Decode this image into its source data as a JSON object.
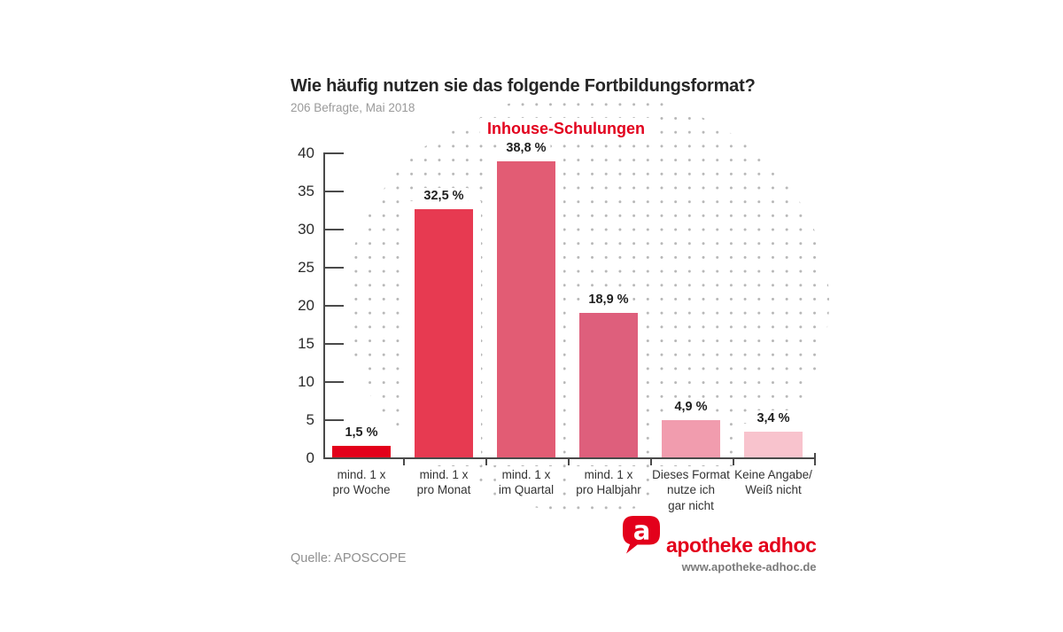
{
  "header": {
    "title": "Wie häufig nutzen sie das folgende Fortbildungsformat?",
    "subtitle": "206 Befragte, Mai 2018"
  },
  "chart_data": {
    "type": "bar",
    "title": "Inhouse-Schulungen",
    "title_color": "#e2001d",
    "categories": [
      [
        "mind. 1 x",
        "pro Woche"
      ],
      [
        "mind. 1 x",
        "pro Monat"
      ],
      [
        "mind. 1 x",
        "im Quartal"
      ],
      [
        "mind. 1 x",
        "pro Halbjahr"
      ],
      [
        "Dieses Format",
        "nutze ich",
        "gar nicht"
      ],
      [
        "Keine Angabe/",
        "Weiß nicht"
      ]
    ],
    "values": [
      1.5,
      32.5,
      38.8,
      18.9,
      4.9,
      3.4
    ],
    "value_labels": [
      "1,5 %",
      "32,5 %",
      "38,8 %",
      "18,9 %",
      "4,9 %",
      "3,4 %"
    ],
    "bar_colors": [
      "#e3001a",
      "#e73a51",
      "#e25c74",
      "#de5f7c",
      "#f19cae",
      "#f8c3cd"
    ],
    "ylim": [
      0,
      40
    ],
    "ytick_step": 5,
    "yticks": [
      0,
      5,
      10,
      15,
      20,
      25,
      30,
      35,
      40
    ],
    "grid": false,
    "legend_position": "none",
    "background_motif": "gray-dot-ellipse",
    "axis_color": "#4a4a4a",
    "dot_color": "#b7b7b7"
  },
  "footer": {
    "source": "Quelle: APOSCOPE"
  },
  "logo": {
    "icon_letter": "a",
    "brand": "apotheke adhoc",
    "website": "www.apotheke-adhoc.de",
    "brand_color": "#e3001b"
  }
}
